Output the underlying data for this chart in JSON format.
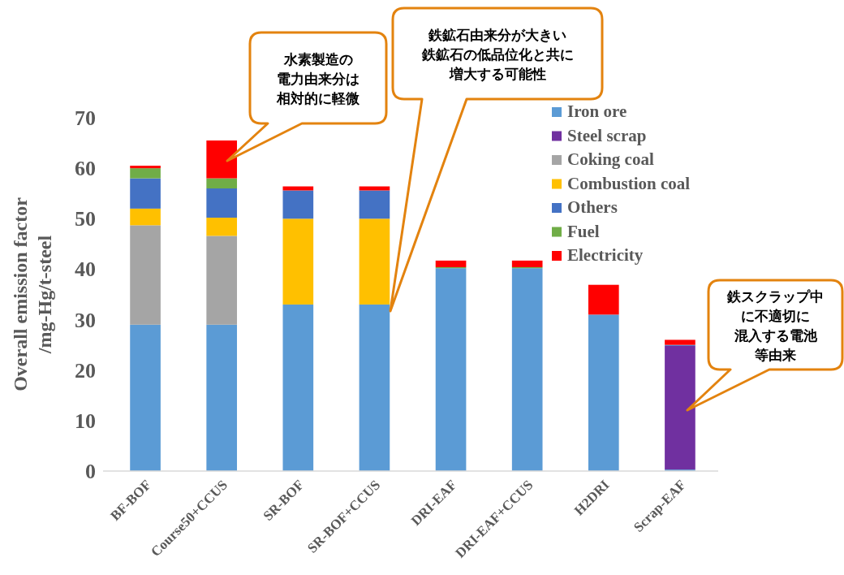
{
  "chart_data": {
    "type": "bar",
    "stacked": true,
    "ylabel": "Overall emission factor\n/mg-Hg/t-steel",
    "categories": [
      "BF-BOF",
      "Course50+CCUS",
      "SR-BOF",
      "SR-BOF+CCUS",
      "DRI-EAF",
      "DRI-EAF+CCUS",
      "H2DRI",
      "Scrap-EAF"
    ],
    "series": [
      {
        "name": "Iron ore",
        "color": "#5b9bd5",
        "values": [
          29,
          29,
          33,
          33,
          40.2,
          40.2,
          31,
          0.3
        ]
      },
      {
        "name": "Steel scrap",
        "color": "#7030a0",
        "values": [
          0,
          0,
          0,
          0,
          0,
          0,
          0,
          24.5
        ]
      },
      {
        "name": "Coking coal",
        "color": "#a5a5a5",
        "values": [
          19.7,
          17.6,
          0,
          0,
          0,
          0,
          0,
          0
        ]
      },
      {
        "name": "Combustion coal",
        "color": "#ffc000",
        "values": [
          3.3,
          3.6,
          17,
          17,
          0,
          0,
          0,
          0
        ]
      },
      {
        "name": "Others",
        "color": "#4472c4",
        "values": [
          6,
          5.8,
          5.6,
          5.6,
          0,
          0,
          0,
          0.2
        ]
      },
      {
        "name": "Fuel",
        "color": "#70ad47",
        "values": [
          2,
          2,
          0,
          0,
          0.2,
          0.2,
          0,
          0
        ]
      },
      {
        "name": "Electricity",
        "color": "#ff0000",
        "values": [
          0.5,
          7.5,
          0.8,
          0.8,
          1.3,
          1.3,
          5.9,
          1
        ]
      }
    ],
    "ylim": [
      0,
      70
    ],
    "yticks": [
      0,
      10,
      20,
      30,
      40,
      50,
      60,
      70
    ],
    "legend": "top right",
    "annotations": [
      "水素製造の電力由来分は相対的に軽微",
      "鉄鉱石由来分が大きい鉄鉱石の低品位化と共に増大する可能性",
      "鉄スクラップ中に不適切に混入する電池等由来"
    ]
  }
}
